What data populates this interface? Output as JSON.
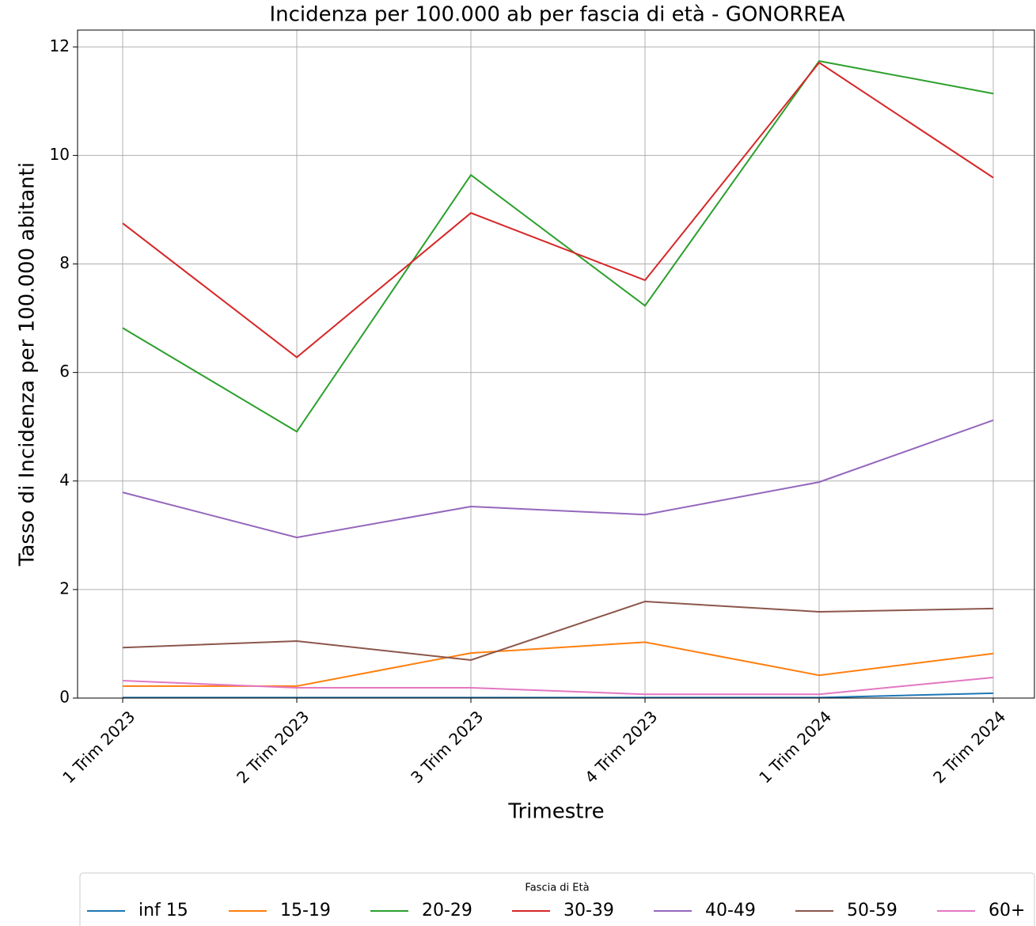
{
  "chart_data": {
    "type": "line",
    "title": "Incidenza per 100.000 ab per fascia di età - GONORREA",
    "x_label": "Trimestre",
    "y_label": "Tasso di Incidenza per 100.000 abitanti",
    "categories": [
      "1 Trim 2023",
      "2 Trim 2023",
      "3 Trim 2023",
      "4 Trim 2023",
      "1 Trim 2024",
      "2 Trim 2024"
    ],
    "ylim": [
      0,
      12.31
    ],
    "yticks": [
      0,
      2,
      4,
      6,
      8,
      10,
      12
    ],
    "grid": true,
    "legend_title": "Fascia di Età",
    "legend_position": "bottom",
    "series": [
      {
        "name": "inf 15",
        "color": "#1f77b4",
        "values": [
          0.01,
          0.01,
          0.01,
          0.01,
          0.01,
          0.09
        ]
      },
      {
        "name": "15-19",
        "color": "#ff7f0e",
        "values": [
          0.22,
          0.22,
          0.83,
          1.03,
          0.42,
          0.82
        ]
      },
      {
        "name": "20-29",
        "color": "#2ca02c",
        "values": [
          6.82,
          4.91,
          9.64,
          7.23,
          11.74,
          11.14
        ]
      },
      {
        "name": "30-39",
        "color": "#d62728",
        "values": [
          8.75,
          6.28,
          8.94,
          7.7,
          11.71,
          9.59
        ]
      },
      {
        "name": "40-49",
        "color": "#9467bd",
        "values": [
          3.79,
          2.96,
          3.53,
          3.38,
          3.98,
          5.12
        ]
      },
      {
        "name": "50-59",
        "color": "#8c564b",
        "values": [
          0.93,
          1.05,
          0.7,
          1.78,
          1.59,
          1.65
        ]
      },
      {
        "name": "60+",
        "color": "#e377c2",
        "values": [
          0.32,
          0.19,
          0.19,
          0.07,
          0.07,
          0.38
        ]
      }
    ]
  }
}
